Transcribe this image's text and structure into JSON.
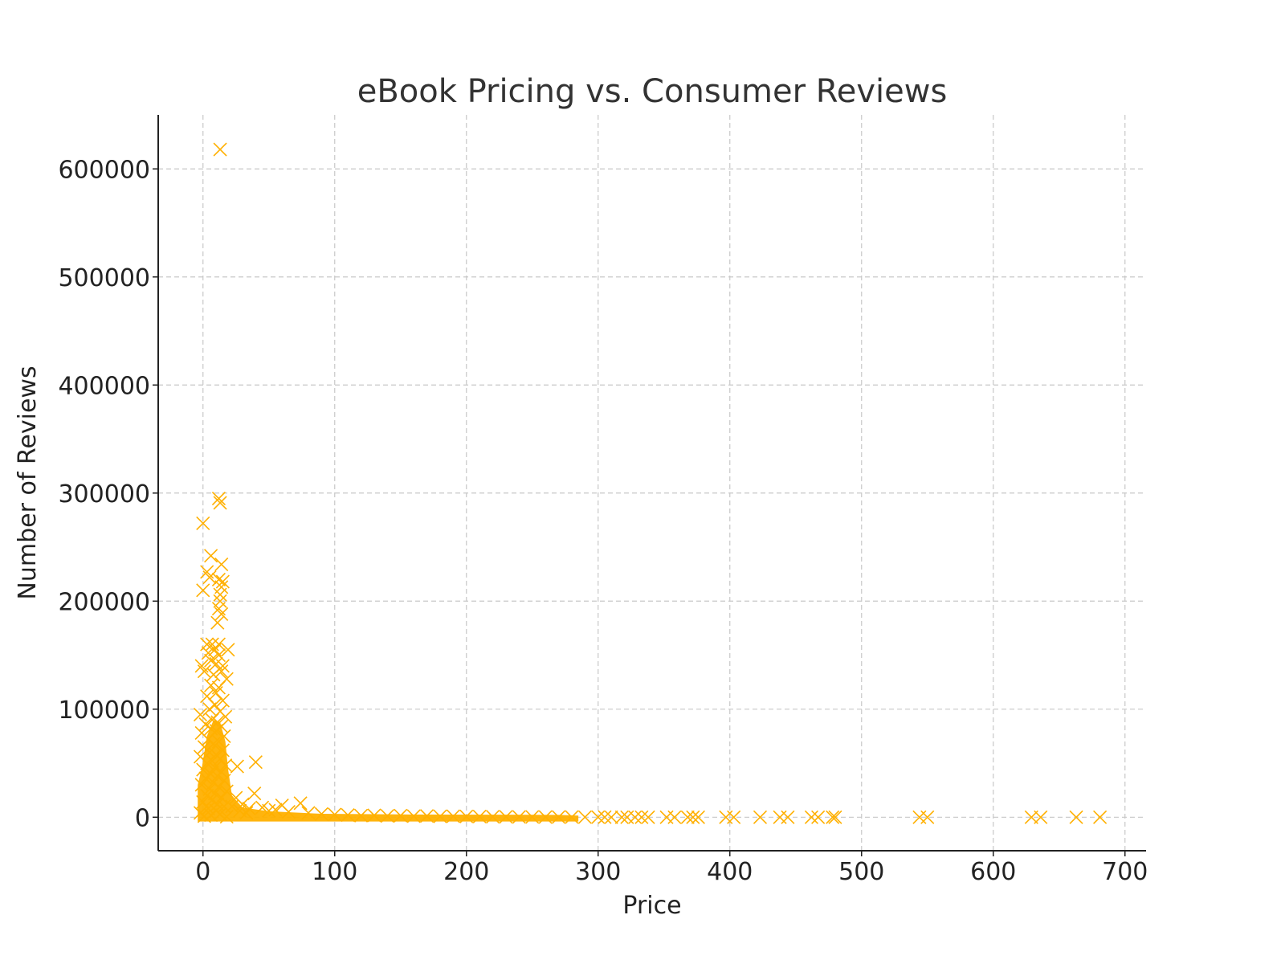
{
  "chart_data": {
    "type": "scatter",
    "title": "eBook Pricing vs. Consumer Reviews",
    "xlabel": "Price",
    "ylabel": "Number of Reviews",
    "xlim": [
      -34,
      716
    ],
    "ylim": [
      -31000,
      650000
    ],
    "xticks": [
      0,
      100,
      200,
      300,
      400,
      500,
      600,
      700
    ],
    "yticks": [
      0,
      100000,
      200000,
      300000,
      400000,
      500000,
      600000
    ],
    "xtick_labels": [
      "0",
      "100",
      "200",
      "300",
      "400",
      "500",
      "600",
      "700"
    ],
    "ytick_labels": [
      "0",
      "100000",
      "200000",
      "300000",
      "400000",
      "500000",
      "600000"
    ],
    "grid": true,
    "marker": "x",
    "color": "#FFB000",
    "series": [
      {
        "points": [
          [
            13,
            618000
          ],
          [
            12,
            295000
          ],
          [
            13,
            291000
          ],
          [
            0,
            272000
          ],
          [
            6,
            242000
          ],
          [
            14,
            234000
          ],
          [
            3,
            227000
          ],
          [
            5,
            222000
          ],
          [
            12,
            220000
          ],
          [
            15,
            218000
          ],
          [
            14,
            213000
          ],
          [
            0,
            210000
          ],
          [
            13,
            206000
          ],
          [
            13,
            200000
          ],
          [
            12,
            193000
          ],
          [
            14,
            188000
          ],
          [
            11,
            180000
          ],
          [
            3,
            160000
          ],
          [
            7,
            160000
          ],
          [
            12,
            160000
          ],
          [
            9,
            155000
          ],
          [
            19,
            155000
          ],
          [
            4,
            152000
          ],
          [
            12,
            150000
          ],
          [
            6,
            145000
          ],
          [
            10,
            142000
          ],
          [
            15,
            140000
          ],
          [
            -1,
            140000
          ],
          [
            1,
            135000
          ],
          [
            14,
            135000
          ],
          [
            8,
            132000
          ],
          [
            18,
            128000
          ],
          [
            6,
            122000
          ],
          [
            12,
            120000
          ],
          [
            10,
            115000
          ],
          [
            3,
            112000
          ],
          [
            15,
            108000
          ],
          [
            9,
            104000
          ],
          [
            5,
            100000
          ],
          [
            13,
            98000
          ],
          [
            -2,
            95000
          ],
          [
            17,
            93000
          ],
          [
            7,
            90000
          ],
          [
            11,
            88000
          ],
          [
            2,
            86000
          ],
          [
            14,
            84000
          ],
          [
            6,
            82000
          ],
          [
            10,
            80000
          ],
          [
            -1,
            78000
          ],
          [
            16,
            75000
          ],
          [
            4,
            72000
          ],
          [
            12,
            70000
          ],
          [
            8,
            68000
          ],
          [
            1,
            65000
          ],
          [
            15,
            62000
          ],
          [
            5,
            60000
          ],
          [
            10,
            58000
          ],
          [
            -2,
            56000
          ],
          [
            13,
            54000
          ],
          [
            7,
            52000
          ],
          [
            3,
            50000
          ],
          [
            17,
            48000
          ],
          [
            9,
            46000
          ],
          [
            0,
            44000
          ],
          [
            14,
            42000
          ],
          [
            6,
            40000
          ],
          [
            11,
            38000
          ],
          [
            2,
            36000
          ],
          [
            16,
            34000
          ],
          [
            8,
            32000
          ],
          [
            -1,
            30000
          ],
          [
            12,
            28000
          ],
          [
            5,
            26000
          ],
          [
            18,
            24000
          ],
          [
            9,
            22000
          ],
          [
            3,
            20000
          ],
          [
            14,
            18000
          ],
          [
            7,
            16000
          ],
          [
            0,
            14000
          ],
          [
            11,
            12000
          ],
          [
            16,
            10000
          ],
          [
            4,
            8000
          ],
          [
            10,
            6000
          ],
          [
            -2,
            4000
          ],
          [
            13,
            3000
          ],
          [
            6,
            2000
          ],
          [
            1,
            1000
          ],
          [
            18,
            500
          ],
          [
            26,
            47000
          ],
          [
            40,
            51000
          ],
          [
            39,
            22000
          ],
          [
            25,
            18000
          ],
          [
            30,
            12000
          ],
          [
            22,
            10000
          ],
          [
            35,
            8000
          ],
          [
            45,
            9000
          ],
          [
            60,
            11000
          ],
          [
            74,
            13000
          ],
          [
            55,
            7000
          ],
          [
            50,
            6000
          ],
          [
            65,
            5000
          ],
          [
            80,
            4000
          ],
          [
            28,
            6000
          ],
          [
            33,
            4000
          ],
          [
            90,
            3000
          ],
          [
            100,
            2500
          ],
          [
            110,
            2000
          ],
          [
            120,
            1500
          ],
          [
            130,
            1800
          ],
          [
            140,
            1200
          ],
          [
            150,
            1500
          ],
          [
            160,
            1000
          ],
          [
            170,
            1200
          ],
          [
            180,
            800
          ],
          [
            190,
            900
          ],
          [
            200,
            700
          ],
          [
            210,
            600
          ],
          [
            220,
            500
          ],
          [
            230,
            400
          ],
          [
            240,
            300
          ],
          [
            250,
            300
          ],
          [
            260,
            200
          ],
          [
            270,
            200
          ],
          [
            280,
            150
          ],
          [
            290,
            100
          ],
          [
            300,
            100
          ],
          [
            305,
            50
          ],
          [
            310,
            0
          ],
          [
            318,
            0
          ],
          [
            322,
            0
          ],
          [
            328,
            0
          ],
          [
            333,
            0
          ],
          [
            338,
            0
          ],
          [
            352,
            0
          ],
          [
            358,
            0
          ],
          [
            368,
            0
          ],
          [
            372,
            0
          ],
          [
            376,
            0
          ],
          [
            397,
            0
          ],
          [
            403,
            0
          ],
          [
            423,
            0
          ],
          [
            438,
            0
          ],
          [
            444,
            0
          ],
          [
            462,
            0
          ],
          [
            467,
            0
          ],
          [
            478,
            0
          ],
          [
            480,
            0
          ],
          [
            544,
            0
          ],
          [
            550,
            0
          ],
          [
            629,
            0
          ],
          [
            636,
            0
          ],
          [
            663,
            0
          ],
          [
            681,
            0
          ]
        ]
      }
    ]
  }
}
